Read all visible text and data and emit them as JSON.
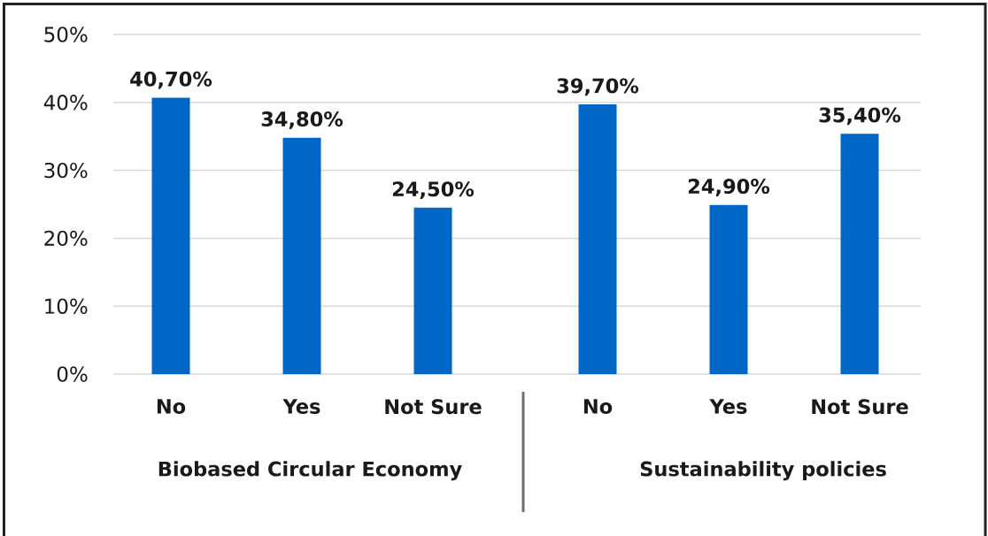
{
  "chart_data": [
    {
      "type": "bar",
      "categories": [
        "No",
        "Yes",
        "Not Sure"
      ],
      "values": [
        40.7,
        34.8,
        24.5
      ],
      "value_labels": [
        "40,70%",
        "34,80%",
        "24,50%"
      ],
      "xlabel": "Biobased Circular Economy",
      "color": "#0067c7",
      "ylim": [
        0,
        50
      ],
      "yticks": [
        {
          "value": 0,
          "label": "0%"
        },
        {
          "value": 10,
          "label": "10%"
        },
        {
          "value": 20,
          "label": "20%"
        },
        {
          "value": 30,
          "label": "30%"
        },
        {
          "value": 40,
          "label": "40%"
        },
        {
          "value": 50,
          "label": "50%"
        }
      ],
      "grid": "y"
    },
    {
      "type": "bar",
      "categories": [
        "No",
        "Yes",
        "Not Sure"
      ],
      "values": [
        39.7,
        24.9,
        35.4
      ],
      "value_labels": [
        "39,70%",
        "24,90%",
        "35,40%"
      ],
      "xlabel": "Sustainability policies",
      "color": "#0067c7",
      "ylim": [
        0,
        50
      ],
      "yticks": [
        0,
        10,
        20,
        30,
        40,
        50
      ],
      "grid": "y",
      "tick_labels": "x"
    }
  ]
}
